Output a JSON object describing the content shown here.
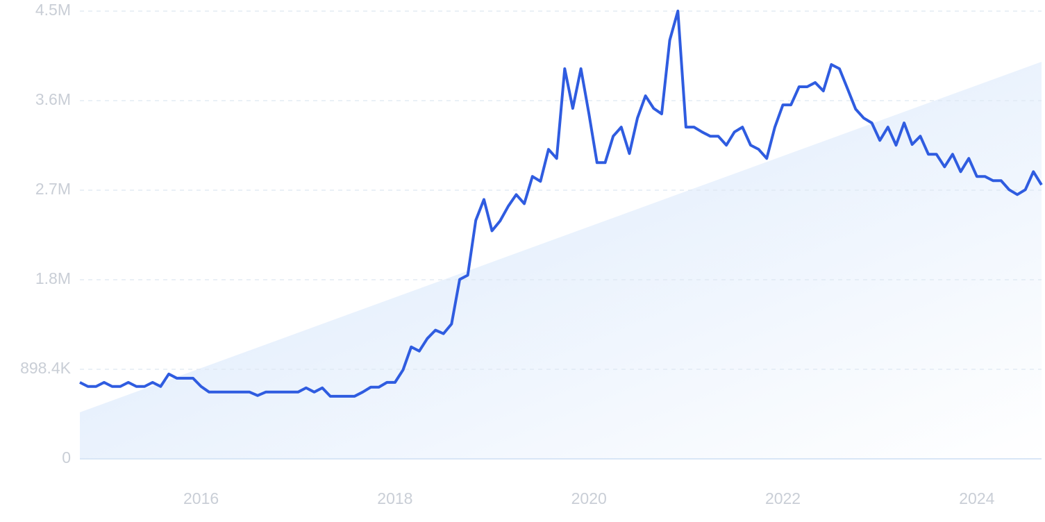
{
  "chart_data": {
    "type": "line",
    "x": [
      2014.75,
      2014.833,
      2014.917,
      2015,
      2015.083,
      2015.167,
      2015.25,
      2015.333,
      2015.417,
      2015.5,
      2015.583,
      2015.667,
      2015.75,
      2015.833,
      2015.917,
      2016,
      2016.083,
      2016.167,
      2016.25,
      2016.333,
      2016.417,
      2016.5,
      2016.583,
      2016.667,
      2016.75,
      2016.833,
      2016.917,
      2017,
      2017.083,
      2017.167,
      2017.25,
      2017.333,
      2017.417,
      2017.5,
      2017.583,
      2017.667,
      2017.75,
      2017.833,
      2017.917,
      2018,
      2018.083,
      2018.167,
      2018.25,
      2018.333,
      2018.417,
      2018.5,
      2018.583,
      2018.667,
      2018.75,
      2018.833,
      2018.917,
      2019,
      2019.083,
      2019.167,
      2019.25,
      2019.333,
      2019.417,
      2019.5,
      2019.583,
      2019.667,
      2019.75,
      2019.833,
      2019.917,
      2020,
      2020.083,
      2020.167,
      2020.25,
      2020.333,
      2020.417,
      2020.5,
      2020.583,
      2020.667,
      2020.75,
      2020.833,
      2020.917,
      2021,
      2021.083,
      2021.167,
      2021.25,
      2021.333,
      2021.417,
      2021.5,
      2021.583,
      2021.667,
      2021.75,
      2021.833,
      2021.917,
      2022,
      2022.083,
      2022.167,
      2022.25,
      2022.333,
      2022.417,
      2022.5,
      2022.583,
      2022.667,
      2022.75,
      2022.833,
      2022.917,
      2023,
      2023.083,
      2023.167,
      2023.25,
      2023.333,
      2023.417,
      2023.5,
      2023.583,
      2023.667,
      2023.75,
      2023.833,
      2023.917,
      2024,
      2024.083,
      2024.167,
      2024.25,
      2024.333,
      2024.417,
      2024.5,
      2024.583,
      2024.667
    ],
    "series": [
      {
        "color": "#2f5ce0",
        "values": [
          767000,
          726000,
          726000,
          767000,
          726000,
          726000,
          767000,
          726000,
          726000,
          767000,
          726000,
          851000,
          809000,
          809000,
          809000,
          726000,
          670000,
          670000,
          670000,
          670000,
          670000,
          670000,
          635000,
          670000,
          670000,
          670000,
          670000,
          670000,
          712000,
          670000,
          712000,
          628000,
          628000,
          628000,
          628000,
          670000,
          719000,
          719000,
          767000,
          767000,
          893000,
          1123000,
          1081000,
          1207000,
          1291000,
          1256000,
          1353000,
          1800000,
          1842000,
          2393000,
          2602000,
          2288000,
          2386000,
          2533000,
          2651000,
          2560000,
          2833000,
          2784000,
          3105000,
          3014000,
          3914000,
          3516000,
          3914000,
          3461000,
          2972000,
          2972000,
          3237000,
          3328000,
          3063000,
          3419000,
          3642000,
          3516000,
          3461000,
          4200000,
          4493000,
          3328000,
          3328000,
          3279000,
          3237000,
          3237000,
          3147000,
          3279000,
          3328000,
          3147000,
          3105000,
          3014000,
          3328000,
          3551000,
          3551000,
          3733000,
          3733000,
          3775000,
          3691000,
          3956000,
          3914000,
          3712000,
          3509000,
          3419000,
          3370000,
          3195000,
          3328000,
          3147000,
          3370000,
          3154000,
          3237000,
          3056000,
          3056000,
          2930000,
          3056000,
          2881000,
          3014000,
          2833000,
          2833000,
          2791000,
          2791000,
          2700000,
          2651000,
          2700000,
          2881000,
          2749000
        ]
      }
    ],
    "trend": {
      "color": "#dbe9fb",
      "values": [
        467000,
        3984000
      ]
    },
    "xlim": [
      2014.75,
      2024.667
    ],
    "xticks": [
      2016,
      2018,
      2020,
      2022,
      2024
    ],
    "ylim": [
      0,
      4492000
    ],
    "yticks": [
      0,
      {
        "value": 898400,
        "label": "898.4K"
      },
      {
        "value": 1796800,
        "label": "1.8M"
      },
      {
        "value": 2695200,
        "label": "2.7M"
      },
      {
        "value": 3593600,
        "label": "3.6M"
      },
      {
        "value": 4492000,
        "label": "4.5M"
      }
    ],
    "grid": true
  }
}
